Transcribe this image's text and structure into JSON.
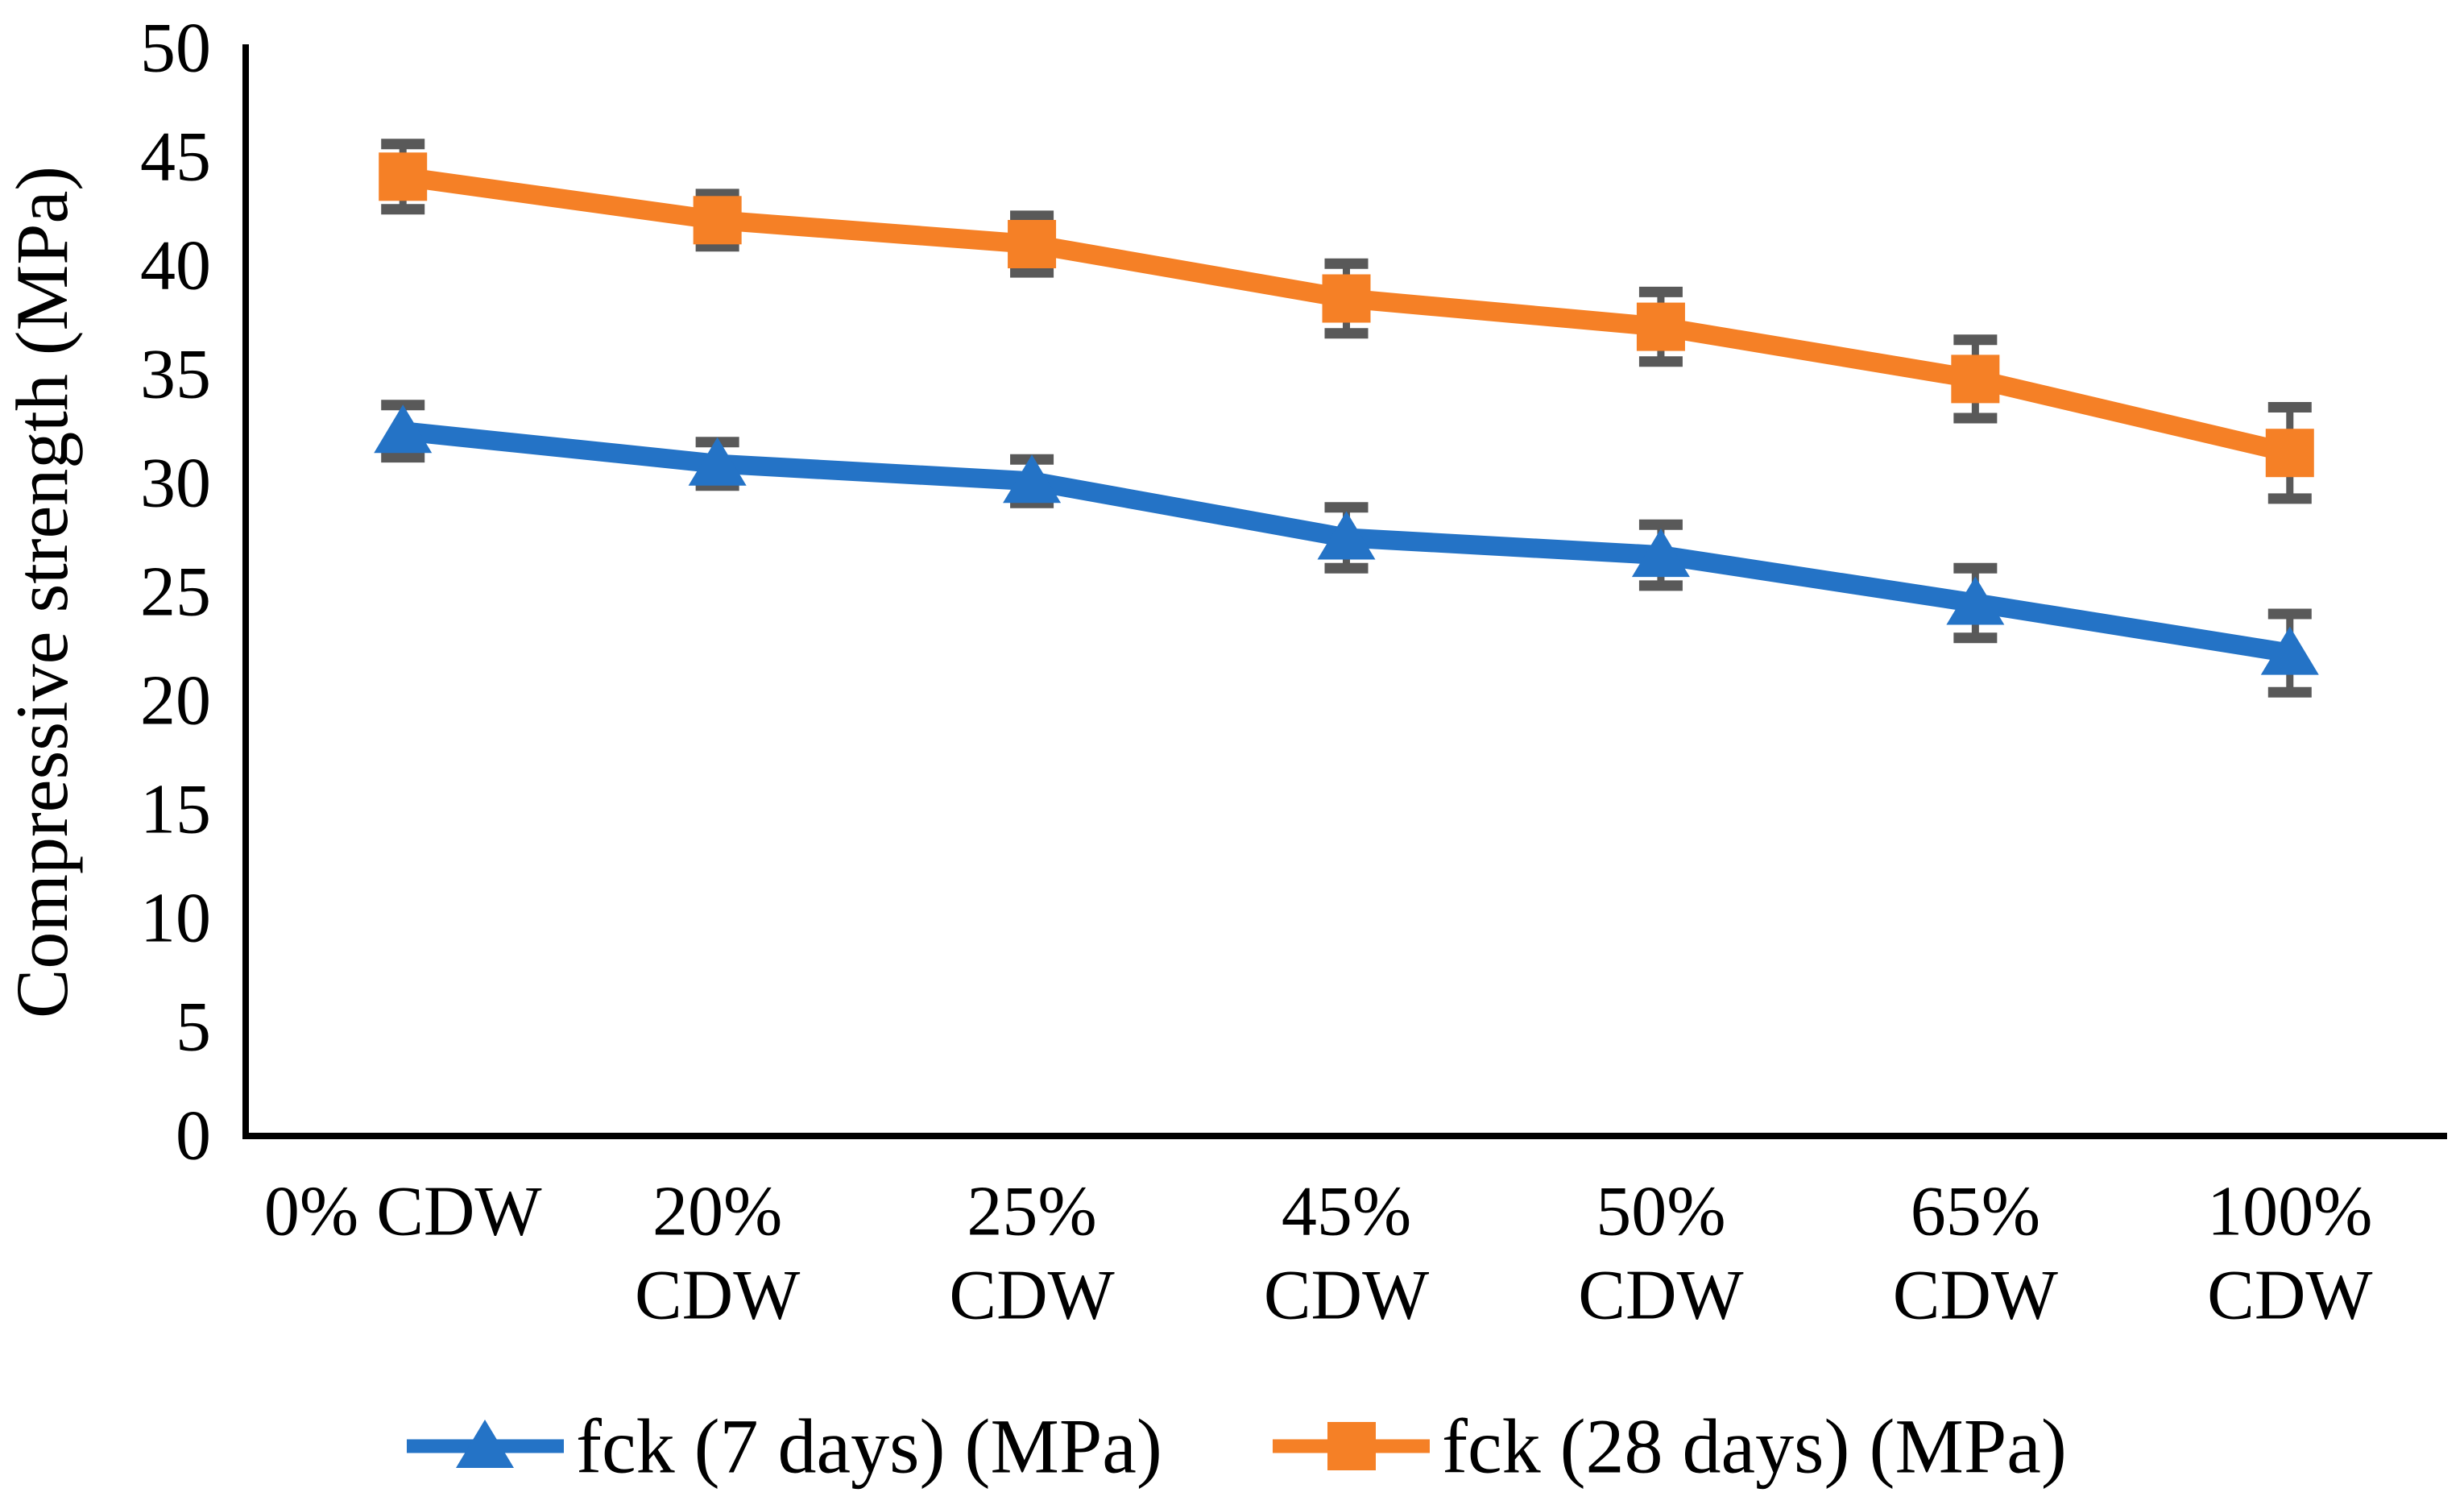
{
  "page": {
    "background": "#ffffff"
  },
  "chart_data": {
    "type": "line",
    "title": "",
    "xlabel": "",
    "ylabel": "Compressive strength (MPa)",
    "categories": [
      "0% CDW",
      "20% CDW",
      "25% CDW",
      "45% CDW",
      "50% CDW",
      "65% CDW",
      "100% CDW"
    ],
    "category_label_lines": [
      [
        "0% CDW"
      ],
      [
        "20%",
        "CDW"
      ],
      [
        "25%",
        "CDW"
      ],
      [
        "45%",
        "CDW"
      ],
      [
        "50%",
        "CDW"
      ],
      [
        "65%",
        "CDW"
      ],
      [
        "100%",
        "CDW"
      ]
    ],
    "ylim": [
      0,
      50
    ],
    "yticks": [
      0,
      5,
      10,
      15,
      20,
      25,
      30,
      35,
      40,
      45,
      50
    ],
    "grid": false,
    "legend_position": "bottom",
    "series": [
      {
        "name": "fck (7 days) (MPa)",
        "marker": "triangle",
        "color": "#2473C6",
        "values": [
          32.4,
          30.9,
          30.1,
          27.5,
          26.7,
          24.5,
          22.2
        ],
        "errors": [
          1.2,
          1.0,
          1.0,
          1.4,
          1.4,
          1.6,
          1.8
        ]
      },
      {
        "name": "fck (28 days) (MPa)",
        "marker": "square",
        "color": "#F58026",
        "values": [
          44.1,
          42.1,
          41.0,
          38.5,
          37.2,
          34.8,
          31.4
        ],
        "errors": [
          1.5,
          1.2,
          1.3,
          1.6,
          1.6,
          1.8,
          2.1
        ]
      }
    ],
    "error_bar_color": "#595959",
    "axis_color": "#000000",
    "text_color": "#000000"
  }
}
